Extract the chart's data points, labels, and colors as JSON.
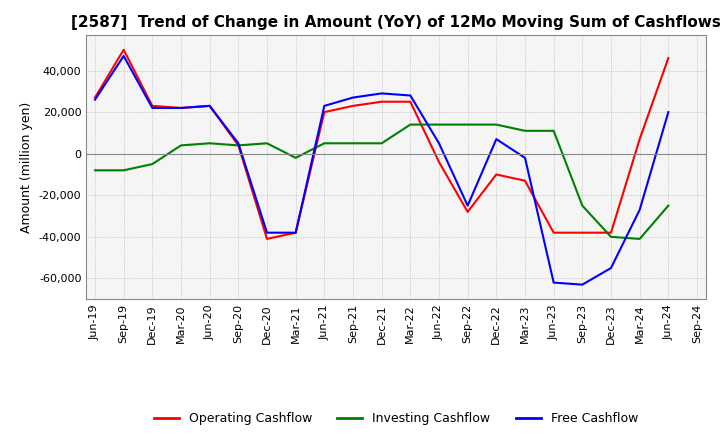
{
  "title": "[2587]  Trend of Change in Amount (YoY) of 12Mo Moving Sum of Cashflows",
  "ylabel": "Amount (million yen)",
  "background_color": "#ffffff",
  "plot_bg_color": "#f5f5f5",
  "grid_color": "#aaaaaa",
  "x_labels": [
    "Jun-19",
    "Sep-19",
    "Dec-19",
    "Mar-20",
    "Jun-20",
    "Sep-20",
    "Dec-20",
    "Mar-21",
    "Jun-21",
    "Sep-21",
    "Dec-21",
    "Mar-22",
    "Jun-22",
    "Sep-22",
    "Dec-22",
    "Mar-23",
    "Jun-23",
    "Sep-23",
    "Dec-23",
    "Mar-24",
    "Jun-24",
    "Sep-24"
  ],
  "operating": [
    27000,
    50000,
    23000,
    22000,
    23000,
    4000,
    -41000,
    -38000,
    20000,
    23000,
    25000,
    25000,
    -4000,
    -28000,
    -10000,
    -13000,
    -38000,
    -38000,
    -38000,
    7000,
    46000,
    null
  ],
  "investing": [
    -8000,
    -8000,
    -5000,
    4000,
    5000,
    4000,
    5000,
    -2000,
    5000,
    5000,
    5000,
    14000,
    14000,
    14000,
    14000,
    11000,
    11000,
    -25000,
    -40000,
    -41000,
    -25000,
    null
  ],
  "free": [
    26000,
    47000,
    22000,
    22000,
    23000,
    5000,
    -38000,
    -38000,
    23000,
    27000,
    29000,
    28000,
    5000,
    -25000,
    7000,
    -2000,
    -62000,
    -63000,
    -55000,
    -27000,
    20000,
    null
  ],
  "ylim": [
    -70000,
    57000
  ],
  "yticks": [
    -60000,
    -40000,
    -20000,
    0,
    20000,
    40000
  ],
  "line_colors": {
    "operating": "#ff0000",
    "investing": "#008000",
    "free": "#0000ff"
  },
  "legend_labels": [
    "Operating Cashflow",
    "Investing Cashflow",
    "Free Cashflow"
  ],
  "title_fontsize": 11,
  "ylabel_fontsize": 9,
  "tick_fontsize": 8
}
